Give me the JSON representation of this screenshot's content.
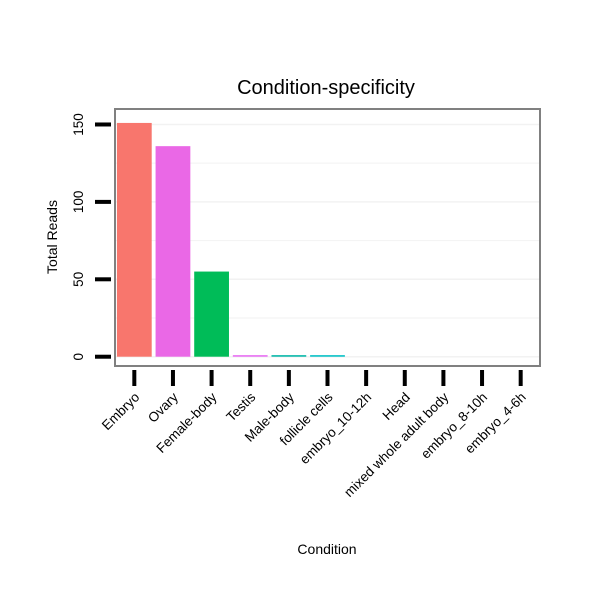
{
  "chart_data": {
    "type": "bar",
    "title": "Condition-specificity",
    "xlabel": "Condition",
    "ylabel": "Total Reads",
    "ylim": [
      -6,
      160
    ],
    "yticks": [
      0,
      50,
      100,
      150
    ],
    "grid": true,
    "categories": [
      "Embryo",
      "Ovary",
      "Female-body",
      "Testis",
      "Male-body",
      "follicle cells",
      "embryo_10-12h",
      "Head",
      "mixed whole adult body",
      "embryo_8-10h",
      "embryo_4-6h"
    ],
    "values": [
      151,
      136,
      55,
      1,
      1,
      1,
      0,
      0,
      0,
      0,
      0
    ],
    "colors": [
      "#F8766D",
      "#EA68E6",
      "#00BC58",
      "#E76BF3",
      "#00B5A6",
      "#00BFC4",
      "#00B0F6",
      "#619CFF",
      "#B983FF",
      "#F564E3",
      "#FF67A4"
    ],
    "legend": "none"
  }
}
